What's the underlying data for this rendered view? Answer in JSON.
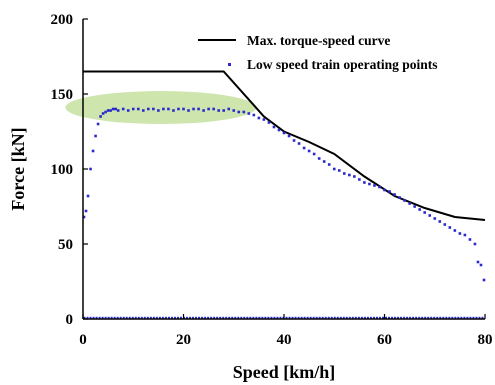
{
  "chart_data": {
    "type": "line+scatter",
    "xlabel": "Speed [km/h]",
    "ylabel": "Force [kN]",
    "xlim": [
      0,
      80
    ],
    "ylim": [
      0,
      200
    ],
    "xticks": [
      "0",
      "20",
      "40",
      "60",
      "80"
    ],
    "yticks": [
      "0",
      "50",
      "100",
      "150",
      "200"
    ],
    "grid": false,
    "legend_position": "top-right",
    "highlight": {
      "shape": "ellipse",
      "color": "#c6e2a0",
      "cx": 15.5,
      "cy": 141,
      "rx": 19,
      "ry": 11
    },
    "series": [
      {
        "name": "Max. torque-speed curve",
        "kind": "line",
        "color": "#000000",
        "x": [
          0,
          28,
          36,
          40,
          45,
          50,
          56,
          62,
          68,
          74,
          80
        ],
        "y": [
          165,
          165,
          135,
          125,
          118,
          110,
          95,
          82,
          74,
          68,
          66
        ]
      },
      {
        "name": "Low speed train operating points",
        "kind": "scatter",
        "color": "#2a2acc",
        "x": [
          0.2,
          0.6,
          1.0,
          1.5,
          2.0,
          2.5,
          3.0,
          3.5,
          4.0,
          4.5,
          5.0,
          5.5,
          6.0,
          6.5,
          7.0,
          8,
          9,
          10,
          11,
          12,
          13,
          14,
          15,
          16,
          17,
          18,
          19,
          20,
          21,
          22,
          23,
          24,
          25,
          26,
          27,
          28,
          29,
          30,
          31,
          32,
          33,
          34,
          35,
          36,
          37,
          38,
          39,
          40,
          41,
          42,
          43,
          44,
          45,
          46,
          47,
          48,
          49,
          50,
          51,
          52,
          53,
          54,
          55,
          56,
          57,
          58,
          59,
          60,
          61,
          62,
          63,
          64,
          65,
          66,
          67,
          68,
          69,
          70,
          71,
          72,
          73,
          74,
          75,
          76,
          77,
          78,
          78.6,
          79.2,
          79.8
        ],
        "y": [
          68,
          72,
          82,
          100,
          112,
          122,
          130,
          135,
          137,
          138,
          139,
          139,
          140,
          140,
          139,
          140,
          139,
          140,
          140,
          139,
          140,
          140,
          139,
          140,
          140,
          139,
          140,
          140,
          139,
          140,
          140,
          139,
          140,
          140,
          139,
          139,
          140,
          139,
          138,
          138,
          137,
          136,
          134,
          133,
          131,
          128,
          126,
          124,
          122,
          119,
          117,
          114,
          112,
          110,
          107,
          105,
          103,
          100,
          99,
          97,
          96,
          95,
          93,
          91,
          90,
          89,
          88,
          86,
          85,
          83,
          81,
          79,
          77,
          75,
          73,
          71,
          69,
          67,
          65,
          63,
          61,
          59,
          57,
          56,
          53,
          50,
          38,
          36,
          26
        ]
      }
    ]
  }
}
